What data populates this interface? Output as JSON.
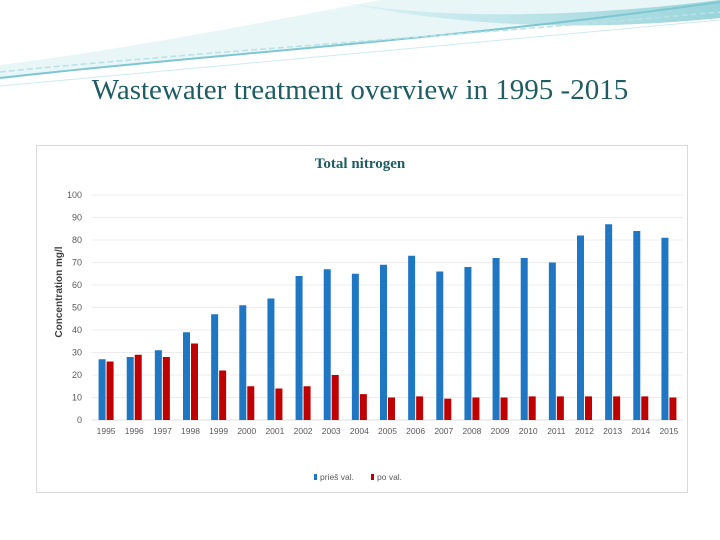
{
  "slide": {
    "title": "Wastewater treatment overview in 1995 -2015"
  },
  "chart_data": {
    "type": "bar",
    "title": "Total nitrogen",
    "xlabel": "",
    "ylabel": "Concentration mg/l",
    "ylim": [
      0,
      100
    ],
    "yticks": [
      0,
      10,
      20,
      30,
      40,
      50,
      60,
      70,
      80,
      90,
      100
    ],
    "categories": [
      "1995",
      "1996",
      "1997",
      "1998",
      "1999",
      "2000",
      "2001",
      "2002",
      "2003",
      "2004",
      "2005",
      "2006",
      "2007",
      "2008",
      "2009",
      "2010",
      "2011",
      "2012",
      "2013",
      "2014",
      "2015"
    ],
    "series": [
      {
        "name": "prieš val.",
        "color": "#1f77c4",
        "values": [
          27,
          28,
          31,
          39,
          47,
          51,
          54,
          64,
          67,
          65,
          69,
          73,
          66,
          68,
          72,
          72,
          70,
          82,
          87,
          84,
          81
        ]
      },
      {
        "name": "po val.",
        "color": "#c00000",
        "values": [
          26,
          29,
          28,
          34,
          22,
          15,
          14,
          15,
          20,
          11.5,
          10,
          10.5,
          9.5,
          10,
          10,
          10.5,
          10.5,
          10.5,
          10.5,
          10.5,
          10
        ]
      }
    ],
    "grid": true,
    "legend_position": "bottom"
  },
  "colors": {
    "title": "#1f5d63",
    "accent_teal": "#4fb3bf",
    "grid": "#d9d9d9"
  }
}
